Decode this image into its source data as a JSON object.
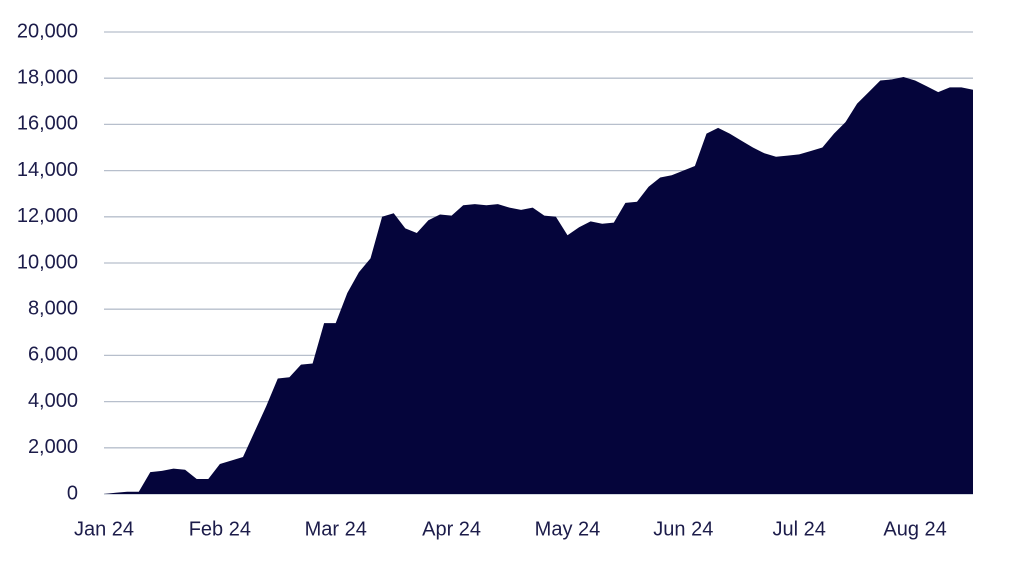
{
  "chart_data": {
    "type": "area",
    "color": "#05053b",
    "grid": true,
    "categories": [
      "Jan 24",
      null,
      null,
      null,
      null,
      null,
      null,
      null,
      null,
      null,
      "Feb 24",
      null,
      null,
      null,
      null,
      null,
      null,
      null,
      null,
      null,
      "Mar 24",
      null,
      null,
      null,
      null,
      null,
      null,
      null,
      null,
      null,
      "Apr 24",
      null,
      null,
      null,
      null,
      null,
      null,
      null,
      null,
      null,
      "May 24",
      null,
      null,
      null,
      null,
      null,
      null,
      null,
      null,
      null,
      "Jun 24",
      null,
      null,
      null,
      null,
      null,
      null,
      null,
      null,
      null,
      "Jul 24",
      null,
      null,
      null,
      null,
      null,
      null,
      null,
      null,
      null,
      "Aug 24",
      null,
      null,
      null,
      null,
      null
    ],
    "values": [
      0,
      50,
      100,
      100,
      950,
      1000,
      1100,
      1050,
      650,
      650,
      1300,
      1450,
      1600,
      2700,
      3800,
      5000,
      5050,
      5600,
      5650,
      7400,
      7400,
      8700,
      9600,
      10200,
      12000,
      12150,
      11500,
      11300,
      11850,
      12100,
      12050,
      12500,
      12550,
      12500,
      12550,
      12400,
      12300,
      12400,
      12050,
      12000,
      11200,
      11550,
      11800,
      11700,
      11750,
      12600,
      12650,
      13300,
      13700,
      13800,
      14000,
      14200,
      15600,
      15850,
      15600,
      15300,
      15000,
      14750,
      14600,
      14650,
      14700,
      14850,
      15000,
      15600,
      16100,
      16900,
      17400,
      17900,
      17950,
      18050,
      17900,
      17650,
      17400,
      17600,
      17600,
      17500
    ],
    "ylim": [
      0,
      20000
    ],
    "yticks": [
      0,
      {
        "value": 2000,
        "label": "2,000"
      },
      {
        "value": 4000,
        "label": "4,000"
      },
      {
        "value": 6000,
        "label": "6,000"
      },
      {
        "value": 8000,
        "label": "8,000"
      },
      {
        "value": 10000,
        "label": "10,000"
      },
      {
        "value": 12000,
        "label": "12,000"
      },
      {
        "value": 14000,
        "label": "14,000"
      },
      {
        "value": 16000,
        "label": "16,000"
      },
      {
        "value": 18000,
        "label": "18,000"
      },
      {
        "value": 20000,
        "label": "20,000"
      }
    ]
  }
}
